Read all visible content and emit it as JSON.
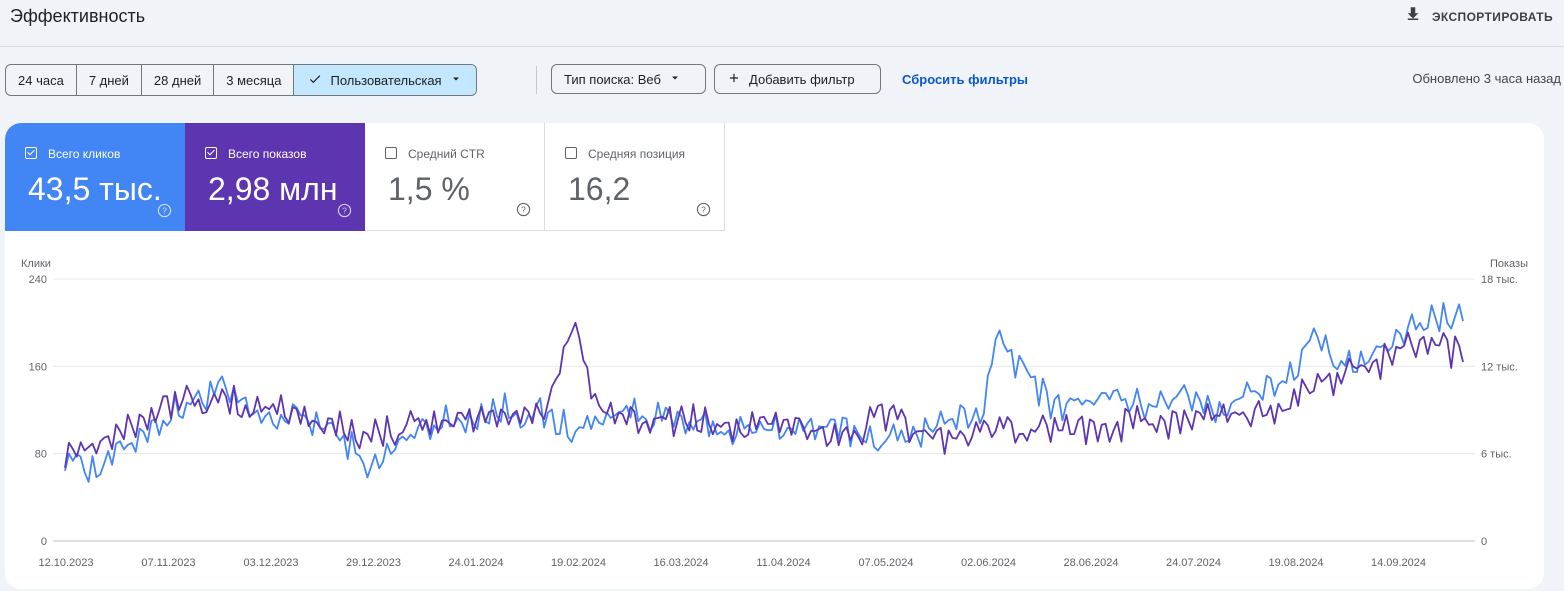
{
  "header": {
    "title": "Эффективность",
    "export_label": "ЭКСПОРТИРОВАТЬ",
    "export_icon": "download-icon"
  },
  "toolbar": {
    "ranges": [
      {
        "label": "24 часа",
        "active": false
      },
      {
        "label": "7 дней",
        "active": false
      },
      {
        "label": "28 дней",
        "active": false
      },
      {
        "label": "3 месяца",
        "active": false
      },
      {
        "label": "Пользовательская",
        "active": true
      }
    ],
    "search_type_label": "Тип поиска: Веб",
    "add_filter_label": "Добавить фильтр",
    "reset_filters_label": "Сбросить фильтры",
    "updated_label": "Обновлено 3 часа назад"
  },
  "metrics": [
    {
      "label": "Всего кликов",
      "value": "43,5 тыс.",
      "checked": true,
      "color": "#4285f4"
    },
    {
      "label": "Всего показов",
      "value": "2,98 млн",
      "checked": true,
      "color": "#5e35b1"
    },
    {
      "label": "Средний CTR",
      "value": "1,5 %",
      "checked": false
    },
    {
      "label": "Средняя позиция",
      "value": "16,2",
      "checked": false
    }
  ],
  "colors": {
    "clicks": "#4285f4",
    "impressions": "#5e35b1",
    "accent": "#0b57d0",
    "active_range_bg": "#c2e7ff"
  },
  "chart_data": {
    "type": "line",
    "title": "",
    "left_axis": {
      "label": "Клики",
      "ticks": [
        "240",
        "160",
        "80",
        "0"
      ],
      "range": [
        0,
        240
      ]
    },
    "right_axis": {
      "label": "Показы",
      "ticks": [
        "18 тыс.",
        "12 тыс.",
        "6 тыс.",
        "0"
      ],
      "range": [
        0,
        18000
      ]
    },
    "x_axis": {
      "start": "2023-10-12",
      "end": "2024-10-02",
      "tick_labels": [
        "12.10.2023",
        "07.11.2023",
        "03.12.2023",
        "29.12.2023",
        "24.01.2024",
        "19.02.2024",
        "16.03.2024",
        "11.04.2024",
        "07.05.2024",
        "02.06.2024",
        "28.06.2024",
        "24.07.2024",
        "19.08.2024",
        "14.09.2024"
      ]
    },
    "grid": true,
    "series": [
      {
        "name": "Клики",
        "axis": "left",
        "color": "#4285f4",
        "x": [
          "2023-10-12",
          "2023-10-20",
          "2023-11-01",
          "2023-11-10",
          "2023-11-20",
          "2023-12-01",
          "2023-12-10",
          "2023-12-20",
          "2023-12-29",
          "2024-01-10",
          "2024-01-20",
          "2024-02-01",
          "2024-02-10",
          "2024-02-19",
          "2024-03-01",
          "2024-03-10",
          "2024-03-20",
          "2024-04-01",
          "2024-04-15",
          "2024-05-01",
          "2024-05-07",
          "2024-05-20",
          "2024-06-02",
          "2024-06-05",
          "2024-06-20",
          "2024-07-01",
          "2024-07-10",
          "2024-07-24",
          "2024-08-01",
          "2024-08-10",
          "2024-08-19",
          "2024-08-25",
          "2024-09-01",
          "2024-09-10",
          "2024-09-20",
          "2024-10-02"
        ],
        "y": [
          80,
          65,
          100,
          120,
          140,
          110,
          115,
          100,
          65,
          105,
          110,
          120,
          115,
          100,
          120,
          115,
          105,
          100,
          105,
          100,
          90,
          105,
          120,
          185,
          125,
          130,
          125,
          135,
          120,
          140,
          150,
          190,
          155,
          170,
          200,
          210
        ]
      },
      {
        "name": "Показы",
        "axis": "right",
        "color": "#5e35b1",
        "x": [
          "2023-10-12",
          "2023-10-20",
          "2023-11-01",
          "2023-11-10",
          "2023-11-20",
          "2023-12-01",
          "2023-12-10",
          "2023-12-20",
          "2023-12-29",
          "2024-01-10",
          "2024-01-20",
          "2024-02-01",
          "2024-02-10",
          "2024-02-19",
          "2024-02-25",
          "2024-03-10",
          "2024-03-20",
          "2024-04-01",
          "2024-04-15",
          "2024-05-01",
          "2024-05-07",
          "2024-05-20",
          "2024-06-02",
          "2024-06-20",
          "2024-07-01",
          "2024-07-10",
          "2024-07-24",
          "2024-08-01",
          "2024-08-10",
          "2024-08-19",
          "2024-08-25",
          "2024-09-01",
          "2024-09-10",
          "2024-09-20",
          "2024-10-02"
        ],
        "y": [
          6200,
          6800,
          8500,
          9800,
          9500,
          9200,
          8800,
          7800,
          7200,
          7900,
          8300,
          8700,
          8800,
          15000,
          8500,
          8600,
          8200,
          7800,
          7800,
          7400,
          9000,
          7000,
          7400,
          7800,
          7900,
          8200,
          8200,
          8800,
          8900,
          9500,
          10500,
          11300,
          12200,
          13500,
          12800
        ]
      }
    ]
  }
}
